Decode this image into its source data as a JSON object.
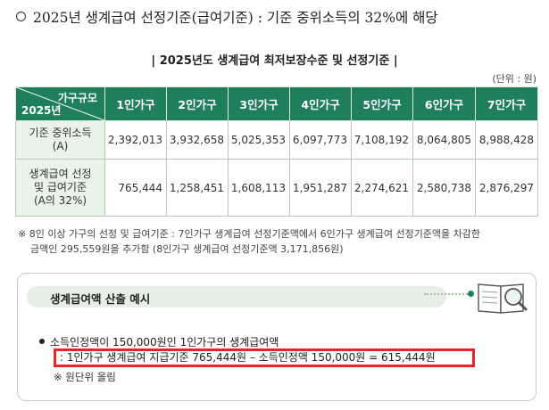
{
  "heading": "2025년 생계급여 선정기준(급여기준) : 기준 중위소득의 32%에 해당",
  "table_title": "| 2025년도 생계급여 최저보장수준 및 선정기준 |",
  "unit": "(단위 : 원)",
  "table": {
    "corner_top": "가구규모",
    "corner_bottom": "2025년",
    "columns": [
      "1인가구",
      "2인가구",
      "3인가구",
      "4인가구",
      "5인가구",
      "6인가구",
      "7인가구"
    ],
    "rows": [
      {
        "label": [
          "기준 중위소득",
          "(A)"
        ],
        "values": [
          "2,392,013",
          "3,932,658",
          "5,025,353",
          "6,097,773",
          "7,108,192",
          "8,064,805",
          "8,988,428"
        ]
      },
      {
        "label": [
          "생계급여 선정",
          "및 급여기준",
          "(A의 32%)"
        ],
        "values": [
          "765,444",
          "1,258,451",
          "1,608,113",
          "1,951,287",
          "2,274,621",
          "2,580,738",
          "2,876,297"
        ]
      }
    ]
  },
  "note": {
    "line1": "※ 8인 이상 가구의 선정 및 급여기준 : 7인가구 생계급여 선정기준액에서 6인가구 생계급여 선정기준액을 차감한",
    "line2": "금액인 295,559원을 추가함 (8인가구 생계급여 선정기준액 3,171,856원)"
  },
  "example": {
    "title": "생계급여액 산출 예시",
    "bullet": "소득인정액이 150,000원인 1인가구의 생계급여액",
    "calc": ": 1인가구 생계급여 지급기준 765,444원 – 소득인정액 150,000원 = 615,444원",
    "footnote": "※ 원단위 올림",
    "icon": "book-magnifier-icon"
  },
  "colors": {
    "header_green": "#1f7f5c",
    "label_bg": "#eaf3ea",
    "highlight_red": "#e8232a"
  }
}
